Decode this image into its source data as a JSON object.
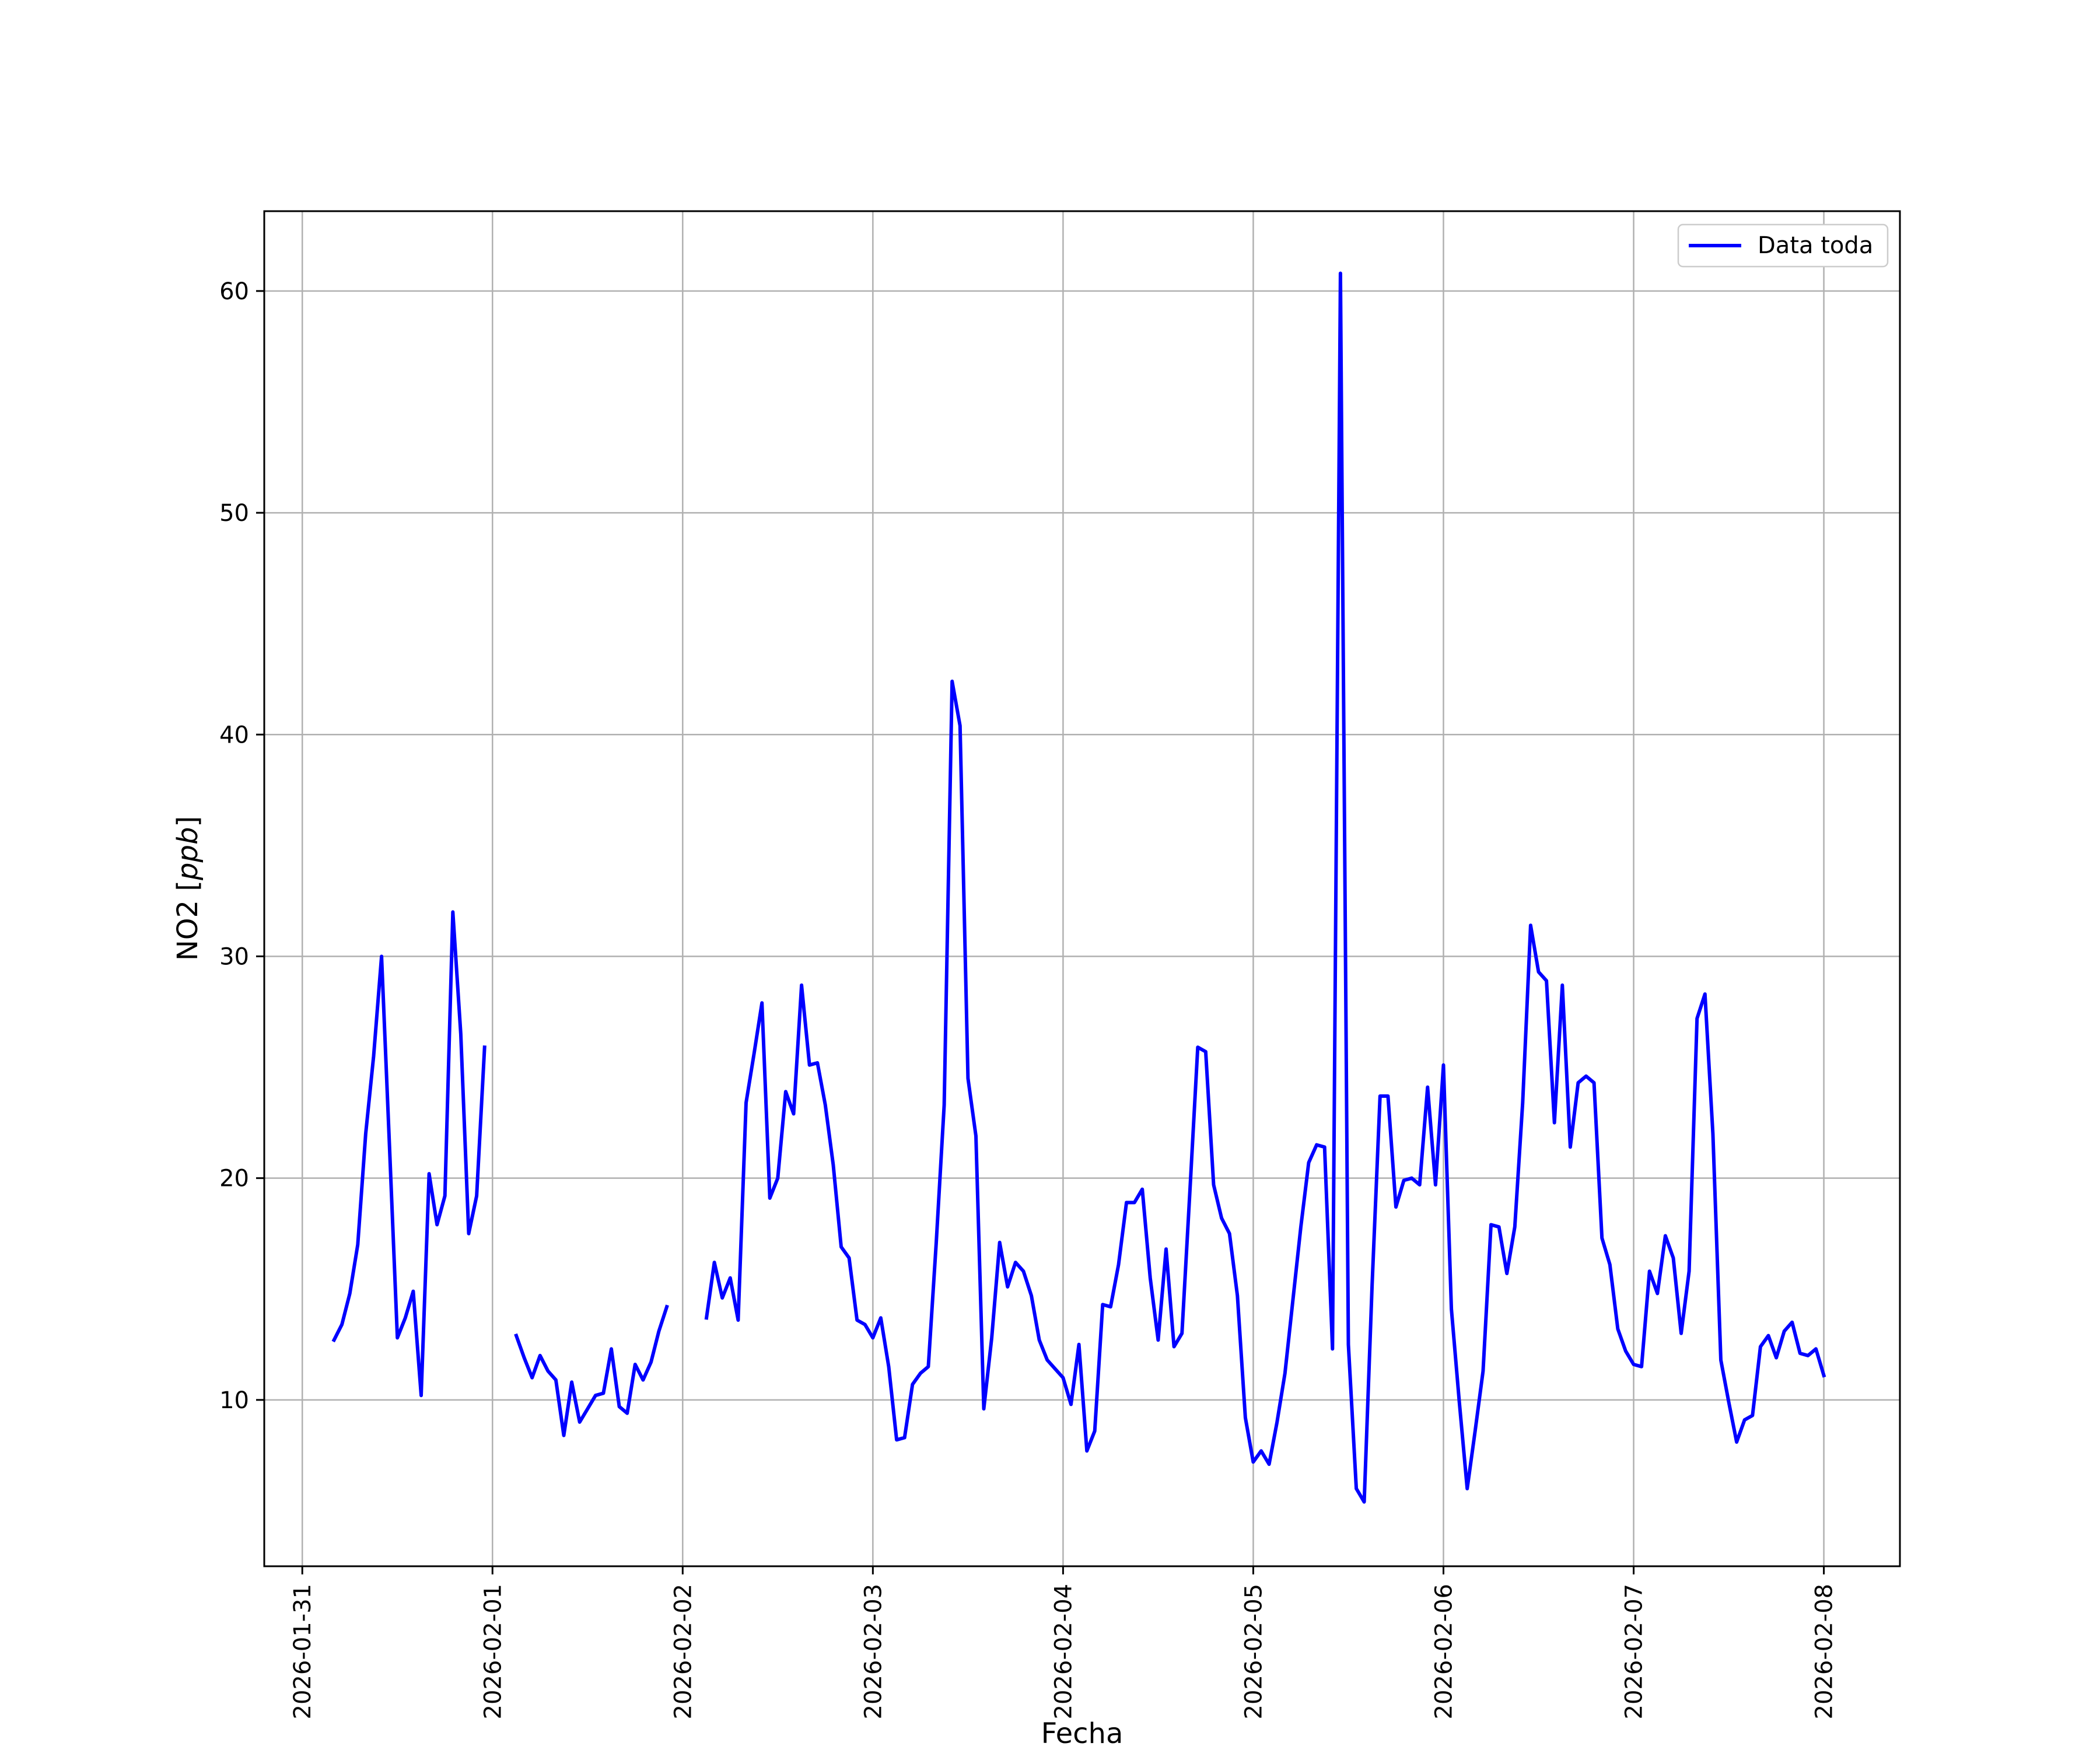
{
  "chart_data": {
    "type": "line",
    "title": "",
    "xlabel": "Fecha",
    "ylabel_prefix": "NO2 [",
    "ylabel_unit": "ppb",
    "ylabel_suffix": "]",
    "x_tick_labels": [
      "2026-01-31",
      "2026-02-01",
      "2026-02-02",
      "2026-02-03",
      "2026-02-04",
      "2026-02-05",
      "2026-02-06",
      "2026-02-07",
      "2026-02-08"
    ],
    "y_ticks": [
      10,
      20,
      30,
      40,
      50,
      60
    ],
    "xlim": [
      "2026-01-30T19:12",
      "2026-02-08T09:36"
    ],
    "ylim": [
      2.5,
      63.6
    ],
    "grid": true,
    "legend_position": "top-right",
    "series": [
      {
        "name": "Data toda",
        "color": "#0000ff",
        "segments": [
          [
            [
              "2026-01-31T04:00",
              12.7
            ],
            [
              "2026-01-31T05:00",
              13.4
            ],
            [
              "2026-01-31T06:00",
              14.8
            ],
            [
              "2026-01-31T07:00",
              17.0
            ],
            [
              "2026-01-31T08:00",
              22.0
            ],
            [
              "2026-01-31T09:00",
              25.5
            ],
            [
              "2026-01-31T10:00",
              30.0
            ],
            [
              "2026-01-31T11:00",
              21.5
            ],
            [
              "2026-01-31T12:00",
              12.8
            ],
            [
              "2026-01-31T13:00",
              13.7
            ],
            [
              "2026-01-31T14:00",
              14.9
            ],
            [
              "2026-01-31T15:00",
              10.2
            ],
            [
              "2026-01-31T16:00",
              20.2
            ],
            [
              "2026-01-31T17:00",
              17.9
            ],
            [
              "2026-01-31T18:00",
              19.2
            ],
            [
              "2026-01-31T19:00",
              32.0
            ],
            [
              "2026-01-31T20:00",
              26.5
            ],
            [
              "2026-01-31T21:00",
              17.5
            ],
            [
              "2026-01-31T22:00",
              19.2
            ],
            [
              "2026-01-31T23:00",
              25.9
            ]
          ],
          [
            [
              "2026-02-01T03:00",
              12.9
            ],
            [
              "2026-02-01T04:00",
              11.9
            ],
            [
              "2026-02-01T05:00",
              11.0
            ],
            [
              "2026-02-01T06:00",
              12.0
            ],
            [
              "2026-02-01T07:00",
              11.3
            ],
            [
              "2026-02-01T08:00",
              10.9
            ],
            [
              "2026-02-01T09:00",
              8.4
            ],
            [
              "2026-02-01T10:00",
              10.8
            ],
            [
              "2026-02-01T11:00",
              9.0
            ],
            [
              "2026-02-01T12:00",
              9.6
            ],
            [
              "2026-02-01T13:00",
              10.2
            ],
            [
              "2026-02-01T14:00",
              10.3
            ],
            [
              "2026-02-01T15:00",
              12.3
            ],
            [
              "2026-02-01T16:00",
              9.7
            ],
            [
              "2026-02-01T17:00",
              9.4
            ],
            [
              "2026-02-01T18:00",
              11.6
            ],
            [
              "2026-02-01T19:00",
              10.9
            ],
            [
              "2026-02-01T20:00",
              11.7
            ],
            [
              "2026-02-01T21:00",
              13.1
            ],
            [
              "2026-02-01T22:00",
              14.2
            ]
          ],
          [
            [
              "2026-02-02T03:00",
              13.7
            ],
            [
              "2026-02-02T04:00",
              16.2
            ],
            [
              "2026-02-02T05:00",
              14.6
            ],
            [
              "2026-02-02T06:00",
              15.5
            ],
            [
              "2026-02-02T07:00",
              13.6
            ],
            [
              "2026-02-02T08:00",
              23.4
            ],
            [
              "2026-02-02T09:00",
              25.6
            ],
            [
              "2026-02-02T10:00",
              27.9
            ],
            [
              "2026-02-02T11:00",
              19.1
            ],
            [
              "2026-02-02T12:00",
              20.0
            ],
            [
              "2026-02-02T13:00",
              23.9
            ],
            [
              "2026-02-02T14:00",
              22.9
            ],
            [
              "2026-02-02T15:00",
              28.7
            ],
            [
              "2026-02-02T16:00",
              25.1
            ],
            [
              "2026-02-02T17:00",
              25.2
            ],
            [
              "2026-02-02T18:00",
              23.3
            ],
            [
              "2026-02-02T19:00",
              20.6
            ],
            [
              "2026-02-02T20:00",
              16.9
            ],
            [
              "2026-02-02T21:00",
              16.4
            ],
            [
              "2026-02-02T22:00",
              13.6
            ],
            [
              "2026-02-02T23:00",
              13.4
            ],
            [
              "2026-02-03T00:00",
              12.8
            ],
            [
              "2026-02-03T01:00",
              13.7
            ],
            [
              "2026-02-03T02:00",
              11.5
            ],
            [
              "2026-02-03T03:00",
              8.2
            ],
            [
              "2026-02-03T04:00",
              8.3
            ],
            [
              "2026-02-03T05:00",
              10.7
            ],
            [
              "2026-02-03T06:00",
              11.2
            ],
            [
              "2026-02-03T07:00",
              11.5
            ],
            [
              "2026-02-03T08:00",
              17.1
            ],
            [
              "2026-02-03T09:00",
              23.3
            ],
            [
              "2026-02-03T10:00",
              42.4
            ],
            [
              "2026-02-03T11:00",
              40.4
            ],
            [
              "2026-02-03T12:00",
              24.5
            ],
            [
              "2026-02-03T13:00",
              21.9
            ],
            [
              "2026-02-03T14:00",
              9.6
            ],
            [
              "2026-02-03T15:00",
              12.8
            ],
            [
              "2026-02-03T16:00",
              17.1
            ],
            [
              "2026-02-03T17:00",
              15.1
            ],
            [
              "2026-02-03T18:00",
              16.2
            ],
            [
              "2026-02-03T19:00",
              15.8
            ],
            [
              "2026-02-03T20:00",
              14.7
            ],
            [
              "2026-02-03T21:00",
              12.7
            ],
            [
              "2026-02-03T22:00",
              11.8
            ],
            [
              "2026-02-03T23:00",
              11.4
            ],
            [
              "2026-02-04T00:00",
              11.0
            ],
            [
              "2026-02-04T01:00",
              9.8
            ],
            [
              "2026-02-04T02:00",
              12.5
            ],
            [
              "2026-02-04T03:00",
              7.7
            ],
            [
              "2026-02-04T04:00",
              8.6
            ],
            [
              "2026-02-04T05:00",
              14.3
            ],
            [
              "2026-02-04T06:00",
              14.2
            ],
            [
              "2026-02-04T07:00",
              16.1
            ],
            [
              "2026-02-04T08:00",
              18.9
            ],
            [
              "2026-02-04T09:00",
              18.9
            ],
            [
              "2026-02-04T10:00",
              19.5
            ],
            [
              "2026-02-04T11:00",
              15.5
            ],
            [
              "2026-02-04T12:00",
              12.7
            ],
            [
              "2026-02-04T13:00",
              16.8
            ],
            [
              "2026-02-04T14:00",
              12.4
            ],
            [
              "2026-02-04T15:00",
              13.0
            ],
            [
              "2026-02-04T16:00",
              19.4
            ],
            [
              "2026-02-04T17:00",
              25.9
            ],
            [
              "2026-02-04T18:00",
              25.7
            ],
            [
              "2026-02-04T19:00",
              19.7
            ],
            [
              "2026-02-04T20:00",
              18.2
            ],
            [
              "2026-02-04T21:00",
              17.5
            ],
            [
              "2026-02-04T22:00",
              14.7
            ],
            [
              "2026-02-04T23:00",
              9.2
            ],
            [
              "2026-02-05T00:00",
              7.2
            ],
            [
              "2026-02-05T01:00",
              7.7
            ],
            [
              "2026-02-05T02:00",
              7.1
            ],
            [
              "2026-02-05T03:00",
              9.0
            ],
            [
              "2026-02-05T04:00",
              11.2
            ],
            [
              "2026-02-05T05:00",
              14.5
            ],
            [
              "2026-02-05T06:00",
              17.8
            ],
            [
              "2026-02-05T07:00",
              20.7
            ],
            [
              "2026-02-05T08:00",
              21.5
            ],
            [
              "2026-02-05T09:00",
              21.4
            ],
            [
              "2026-02-05T10:00",
              12.3
            ],
            [
              "2026-02-05T11:00",
              60.8
            ],
            [
              "2026-02-05T12:00",
              12.5
            ],
            [
              "2026-02-05T13:00",
              6.0
            ],
            [
              "2026-02-05T14:00",
              5.4
            ],
            [
              "2026-02-05T15:00",
              15.2
            ],
            [
              "2026-02-05T16:00",
              23.7
            ],
            [
              "2026-02-05T17:00",
              23.7
            ],
            [
              "2026-02-05T18:00",
              18.7
            ],
            [
              "2026-02-05T19:00",
              19.9
            ],
            [
              "2026-02-05T20:00",
              20.0
            ],
            [
              "2026-02-05T21:00",
              19.7
            ],
            [
              "2026-02-05T22:00",
              24.1
            ],
            [
              "2026-02-05T23:00",
              19.7
            ],
            [
              "2026-02-06T00:00",
              25.1
            ],
            [
              "2026-02-06T01:00",
              14.1
            ],
            [
              "2026-02-06T02:00",
              9.9
            ],
            [
              "2026-02-06T03:00",
              6.0
            ],
            [
              "2026-02-06T04:00",
              8.6
            ],
            [
              "2026-02-06T05:00",
              11.3
            ],
            [
              "2026-02-06T06:00",
              17.9
            ],
            [
              "2026-02-06T07:00",
              17.8
            ],
            [
              "2026-02-06T08:00",
              15.7
            ],
            [
              "2026-02-06T09:00",
              17.8
            ],
            [
              "2026-02-06T10:00",
              23.4
            ],
            [
              "2026-02-06T11:00",
              31.4
            ],
            [
              "2026-02-06T12:00",
              29.3
            ],
            [
              "2026-02-06T13:00",
              28.9
            ],
            [
              "2026-02-06T14:00",
              22.5
            ],
            [
              "2026-02-06T15:00",
              28.7
            ],
            [
              "2026-02-06T16:00",
              21.4
            ],
            [
              "2026-02-06T17:00",
              24.3
            ],
            [
              "2026-02-06T18:00",
              24.6
            ],
            [
              "2026-02-06T19:00",
              24.3
            ],
            [
              "2026-02-06T20:00",
              17.3
            ],
            [
              "2026-02-06T21:00",
              16.1
            ],
            [
              "2026-02-06T22:00",
              13.2
            ],
            [
              "2026-02-06T23:00",
              12.2
            ],
            [
              "2026-02-07T00:00",
              11.6
            ],
            [
              "2026-02-07T01:00",
              11.5
            ],
            [
              "2026-02-07T02:00",
              15.8
            ],
            [
              "2026-02-07T03:00",
              14.8
            ],
            [
              "2026-02-07T04:00",
              17.4
            ],
            [
              "2026-02-07T05:00",
              16.4
            ],
            [
              "2026-02-07T06:00",
              13.0
            ],
            [
              "2026-02-07T07:00",
              15.8
            ],
            [
              "2026-02-07T08:00",
              27.2
            ],
            [
              "2026-02-07T09:00",
              28.3
            ],
            [
              "2026-02-07T10:00",
              22.0
            ],
            [
              "2026-02-07T11:00",
              11.8
            ],
            [
              "2026-02-07T12:00",
              9.9
            ],
            [
              "2026-02-07T13:00",
              8.1
            ],
            [
              "2026-02-07T14:00",
              9.1
            ],
            [
              "2026-02-07T15:00",
              9.3
            ],
            [
              "2026-02-07T16:00",
              12.4
            ],
            [
              "2026-02-07T17:00",
              12.9
            ],
            [
              "2026-02-07T18:00",
              11.9
            ],
            [
              "2026-02-07T19:00",
              13.1
            ],
            [
              "2026-02-07T20:00",
              13.5
            ],
            [
              "2026-02-07T21:00",
              12.1
            ],
            [
              "2026-02-07T22:00",
              12.0
            ],
            [
              "2026-02-07T23:00",
              12.3
            ],
            [
              "2026-02-08T00:00",
              11.1
            ]
          ]
        ]
      }
    ]
  }
}
